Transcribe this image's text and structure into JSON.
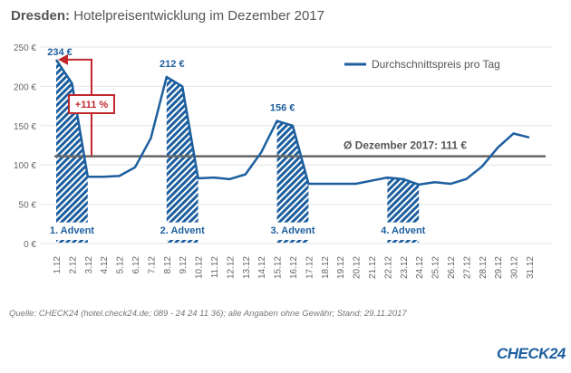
{
  "title": {
    "bold": "Dresden:",
    "rest": " Hotelpreisentwicklung im Dezember 2017"
  },
  "chart_data": {
    "type": "line",
    "x": [
      "1.12",
      "2.12",
      "3.12",
      "4.12",
      "5.12",
      "6.12",
      "7.12",
      "8.12",
      "9.12",
      "10.12",
      "11.12",
      "12.12",
      "13.12",
      "14.12",
      "15.12",
      "16.12",
      "17.12",
      "18.12",
      "19.12",
      "20.12",
      "21.12",
      "22.12",
      "23.12",
      "24.12",
      "25.12",
      "26.12",
      "27.12",
      "28.12",
      "29.12",
      "30.12",
      "31.12"
    ],
    "series": [
      {
        "name": "Durchschnittspreis pro Tag",
        "color": "#1d5f9e",
        "values": [
          234,
          204,
          85,
          85,
          86,
          97,
          134,
          212,
          200,
          83,
          84,
          82,
          88,
          116,
          156,
          150,
          76,
          76,
          76,
          76,
          80,
          84,
          82,
          75,
          78,
          76,
          82,
          98,
          122,
          140,
          135
        ]
      }
    ],
    "ylim": [
      0,
      250
    ],
    "yticks": [
      "0 €",
      "50 €",
      "100 €",
      "150 €",
      "200 €",
      "250 €"
    ],
    "ytick_values": [
      0,
      50,
      100,
      150,
      200,
      250
    ],
    "grid": true,
    "legend": "top-right",
    "average": {
      "value": 111,
      "label": "Ø Dezember 2017: 111 €",
      "color": "#666666"
    },
    "annotations": [
      {
        "index": 0,
        "label": "234 €"
      },
      {
        "index": 7,
        "label": "212 €"
      },
      {
        "index": 14,
        "label": "156 €"
      }
    ],
    "increase_callout": {
      "label": "+111 %",
      "color": "#c0282d"
    },
    "advents": [
      {
        "label": "1. Advent",
        "start": 0,
        "end": 2
      },
      {
        "label": "2. Advent",
        "start": 7,
        "end": 9
      },
      {
        "label": "3. Advent",
        "start": 14,
        "end": 16
      },
      {
        "label": "4. Advent",
        "start": 21,
        "end": 23
      }
    ]
  },
  "source": "Quelle: CHECK24 (hotel.check24.de; 089 - 24 24 11 36); alle Angaben ohne Gewähr; Stand: 29.11.2017",
  "logo": "CHECK24"
}
